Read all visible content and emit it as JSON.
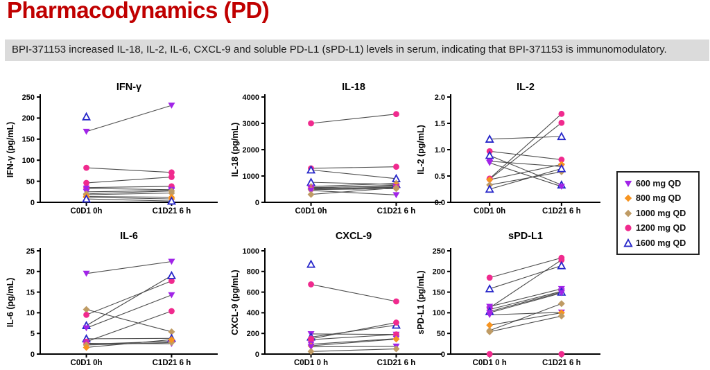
{
  "page": {
    "title": "Pharmacodynamics (PD)",
    "subtitle": "BPI-371153 increased IL-18, IL-2, IL-6, CXCL-9 and soluble PD-L1 (sPD-L1) levels in serum, indicating that BPI-371153 is immunomodulatory."
  },
  "colors": {
    "title_red": "#C00000",
    "banner_bg": "#DBDBDB",
    "axis": "#000000",
    "pair_line": "#4D4D4D"
  },
  "legend": {
    "position": "right",
    "items": [
      {
        "dose": "600",
        "label": "600 mg QD",
        "shape": "triangle-down",
        "color": "#A124E8",
        "open": false
      },
      {
        "dose": "800",
        "label": "800 mg QD",
        "shape": "diamond",
        "color": "#F79420",
        "open": false
      },
      {
        "dose": "1000",
        "label": "1000 mg QD",
        "shape": "diamond",
        "color": "#BF9B64",
        "open": false
      },
      {
        "dose": "1200",
        "label": "1200 mg QD",
        "shape": "circle",
        "color": "#F02A8E",
        "open": false
      },
      {
        "dose": "1600",
        "label": "1600 mg QD",
        "shape": "triangle-up",
        "color": "#2626C9",
        "open": true
      }
    ]
  },
  "chart_data": [
    {
      "id": "ifn-gamma",
      "type": "scatter",
      "title": "IFN-γ",
      "ylabel": "IFN-γ (pg/mL)",
      "xlabel": "",
      "categories": [
        "C0D1 0h",
        "C1D21 6 h"
      ],
      "ylim": [
        0,
        250
      ],
      "grid": false,
      "ytick_values": [
        0,
        50,
        100,
        150,
        200,
        250
      ],
      "ytick_labels": [
        "0",
        "50",
        "100",
        "150",
        "200",
        "250"
      ],
      "pairs": [
        {
          "dose": "1600",
          "values": [
            203,
            null
          ]
        },
        {
          "dose": "600",
          "values": [
            168,
            230
          ]
        },
        {
          "dose": "1200",
          "values": [
            82,
            71
          ]
        },
        {
          "dose": "1200",
          "values": [
            46,
            60
          ]
        },
        {
          "dose": "1200",
          "values": [
            35,
            38
          ]
        },
        {
          "dose": "600",
          "values": [
            33,
            30
          ]
        },
        {
          "dose": "600",
          "values": [
            25,
            28
          ]
        },
        {
          "dose": "1000",
          "values": [
            20,
            27
          ]
        },
        {
          "dose": "1000",
          "values": [
            18,
            22
          ]
        },
        {
          "dose": "800",
          "values": [
            14,
            12
          ]
        },
        {
          "dose": "800",
          "values": [
            12,
            8
          ]
        },
        {
          "dose": "1600",
          "values": [
            8,
            3
          ]
        }
      ]
    },
    {
      "id": "il-18",
      "type": "scatter",
      "title": "IL-18",
      "ylabel": "IL-18 (pg/mL)",
      "xlabel": "",
      "categories": [
        "C0D1 0h",
        "C1D21 6 h"
      ],
      "ylim": [
        0,
        4000
      ],
      "grid": false,
      "ytick_values": [
        0,
        1000,
        2000,
        3000,
        4000
      ],
      "ytick_labels": [
        "0",
        "1000",
        "2000",
        "3000",
        "4000"
      ],
      "pairs": [
        {
          "dose": "1200",
          "values": [
            3000,
            3350
          ]
        },
        {
          "dose": "1200",
          "values": [
            1290,
            1350
          ]
        },
        {
          "dose": "1600",
          "values": [
            1230,
            900
          ]
        },
        {
          "dose": "1600",
          "values": [
            760,
            680
          ]
        },
        {
          "dose": "1000",
          "values": [
            600,
            720
          ]
        },
        {
          "dose": "600",
          "values": [
            560,
            620
          ]
        },
        {
          "dose": "800",
          "values": [
            540,
            650
          ]
        },
        {
          "dose": "600",
          "values": [
            520,
            580
          ]
        },
        {
          "dose": "1200",
          "values": [
            500,
            560
          ]
        },
        {
          "dose": "1000",
          "values": [
            480,
            520
          ]
        },
        {
          "dose": "600",
          "values": [
            450,
            280
          ]
        },
        {
          "dose": "1000",
          "values": [
            300,
            550
          ]
        }
      ]
    },
    {
      "id": "il-2",
      "type": "scatter",
      "title": "IL-2",
      "ylabel": "IL-2 (pg/mL)",
      "xlabel": "",
      "categories": [
        "C0D1 0h",
        "C1D21 6 h"
      ],
      "ylim": [
        0,
        2.0
      ],
      "grid": false,
      "ytick_values": [
        0,
        0.5,
        1.0,
        1.5,
        2.0
      ],
      "ytick_labels": [
        "0.0",
        "0.5",
        "1.0",
        "1.5",
        "2.0"
      ],
      "pairs": [
        {
          "dose": "1600",
          "values": [
            1.2,
            1.25
          ]
        },
        {
          "dose": "1200",
          "values": [
            0.97,
            0.81
          ]
        },
        {
          "dose": "1600",
          "values": [
            0.89,
            0.33
          ]
        },
        {
          "dose": "600",
          "values": [
            0.78,
            0.68
          ]
        },
        {
          "dose": "600",
          "values": [
            0.75,
            0.3
          ]
        },
        {
          "dose": "1200",
          "values": [
            0.45,
            1.68
          ]
        },
        {
          "dose": "1200",
          "values": [
            0.44,
            1.51
          ]
        },
        {
          "dose": "800",
          "values": [
            0.43,
            0.72
          ]
        },
        {
          "dose": "1000",
          "values": [
            0.33,
            0.58
          ]
        },
        {
          "dose": "1600",
          "values": [
            0.25,
            0.64
          ]
        }
      ]
    },
    {
      "id": "il-6",
      "type": "scatter",
      "title": "IL-6",
      "ylabel": "IL-6 (pg/mL)",
      "xlabel": "",
      "categories": [
        "C0D1 0h",
        "C1D21 6 h"
      ],
      "ylim": [
        0,
        25
      ],
      "grid": false,
      "ytick_values": [
        0,
        5,
        10,
        15,
        20,
        25
      ],
      "ytick_labels": [
        "0",
        "5",
        "10",
        "15",
        "20",
        "25"
      ],
      "pairs": [
        {
          "dose": "600",
          "values": [
            19.5,
            22.4
          ]
        },
        {
          "dose": "1000",
          "values": [
            10.8,
            5.4
          ]
        },
        {
          "dose": "1200",
          "values": [
            9.5,
            17.7
          ]
        },
        {
          "dose": "1600",
          "values": [
            6.9,
            19.0
          ]
        },
        {
          "dose": "600",
          "values": [
            6.3,
            14.3
          ]
        },
        {
          "dose": "1600",
          "values": [
            3.7,
            3.8
          ]
        },
        {
          "dose": "1200",
          "values": [
            3.0,
            10.4
          ]
        },
        {
          "dose": "600",
          "values": [
            2.6,
            2.5
          ]
        },
        {
          "dose": "1200",
          "values": [
            2.4,
            3.1
          ]
        },
        {
          "dose": "1000",
          "values": [
            2.2,
            2.8
          ]
        },
        {
          "dose": "800",
          "values": [
            1.6,
            3.5
          ]
        }
      ]
    },
    {
      "id": "cxcl-9",
      "type": "scatter",
      "title": "CXCL-9",
      "ylabel": "CXCL-9 (pg/mL)",
      "xlabel": "",
      "categories": [
        "C0D1 0 h",
        "C1D21 6 h"
      ],
      "ylim": [
        0,
        1000
      ],
      "grid": false,
      "ytick_values": [
        0,
        200,
        400,
        600,
        800,
        1000
      ],
      "ytick_labels": [
        "0",
        "200",
        "400",
        "600",
        "800",
        "1000"
      ],
      "pairs": [
        {
          "dose": "1600",
          "values": [
            870,
            null
          ]
        },
        {
          "dose": "1200",
          "values": [
            675,
            510
          ]
        },
        {
          "dose": "600",
          "values": [
            195,
            190
          ]
        },
        {
          "dose": "1600",
          "values": [
            165,
            280
          ]
        },
        {
          "dose": "1200",
          "values": [
            148,
            305
          ]
        },
        {
          "dose": "1200",
          "values": [
            140,
            190
          ]
        },
        {
          "dose": "600",
          "values": [
            95,
            150
          ]
        },
        {
          "dose": "800",
          "values": [
            80,
            145
          ]
        },
        {
          "dose": "600",
          "values": [
            70,
            75
          ]
        },
        {
          "dose": "1000",
          "values": [
            25,
            50
          ]
        }
      ]
    },
    {
      "id": "spd-l1",
      "type": "scatter",
      "title": "sPD-L1",
      "ylabel": "sPD-L1 (pg/mL)",
      "xlabel": "",
      "categories": [
        "C0D1 0 h",
        "C1D21 6 h"
      ],
      "ylim": [
        0,
        250
      ],
      "grid": false,
      "ytick_values": [
        0,
        50,
        100,
        150,
        200,
        250
      ],
      "ytick_labels": [
        "0",
        "50",
        "100",
        "150",
        "200",
        "250"
      ],
      "pairs": [
        {
          "dose": "1200",
          "values": [
            185,
            233
          ]
        },
        {
          "dose": "1200",
          "values": [
            112,
            228
          ]
        },
        {
          "dose": "1600",
          "values": [
            158,
            214
          ]
        },
        {
          "dose": "600",
          "values": [
            115,
            158
          ]
        },
        {
          "dose": "600",
          "values": [
            108,
            152
          ]
        },
        {
          "dose": "1600",
          "values": [
            103,
            150
          ]
        },
        {
          "dose": "600",
          "values": [
            100,
            148
          ]
        },
        {
          "dose": "600",
          "values": [
            95,
            101
          ]
        },
        {
          "dose": "1000",
          "values": [
            57,
            122
          ]
        },
        {
          "dose": "800",
          "values": [
            70,
            100
          ]
        },
        {
          "dose": "1000",
          "values": [
            54,
            92
          ]
        },
        {
          "dose": "1200",
          "values": [
            0,
            0
          ]
        }
      ]
    }
  ]
}
